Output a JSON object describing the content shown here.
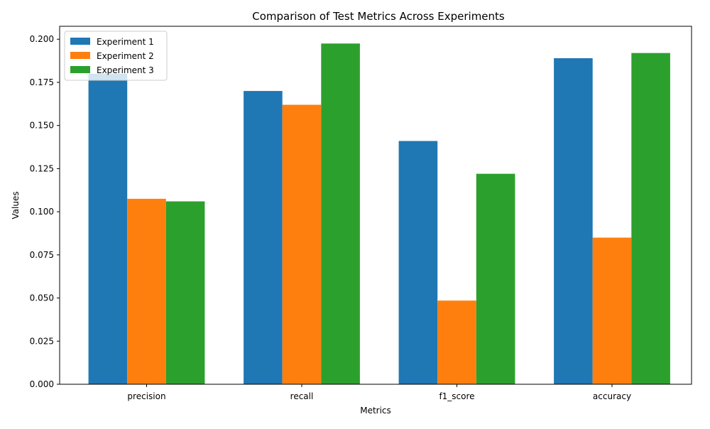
{
  "chart_data": {
    "type": "bar",
    "title": "Comparison of Test Metrics Across Experiments",
    "xlabel": "Metrics",
    "ylabel": "Values",
    "categories": [
      "precision",
      "recall",
      "f1_score",
      "accuracy"
    ],
    "series": [
      {
        "name": "Experiment 1",
        "color": "#1f77b4",
        "values": [
          0.18,
          0.17,
          0.141,
          0.189
        ]
      },
      {
        "name": "Experiment 2",
        "color": "#ff7f0e",
        "values": [
          0.1075,
          0.162,
          0.0485,
          0.085
        ]
      },
      {
        "name": "Experiment 3",
        "color": "#2ca02c",
        "values": [
          0.106,
          0.1975,
          0.122,
          0.192
        ]
      }
    ],
    "ylim": [
      0,
      0.2075
    ],
    "yticks": [
      "0.000",
      "0.025",
      "0.050",
      "0.075",
      "0.100",
      "0.125",
      "0.150",
      "0.175",
      "0.200"
    ],
    "grid": false,
    "legend_position": "top-left"
  }
}
